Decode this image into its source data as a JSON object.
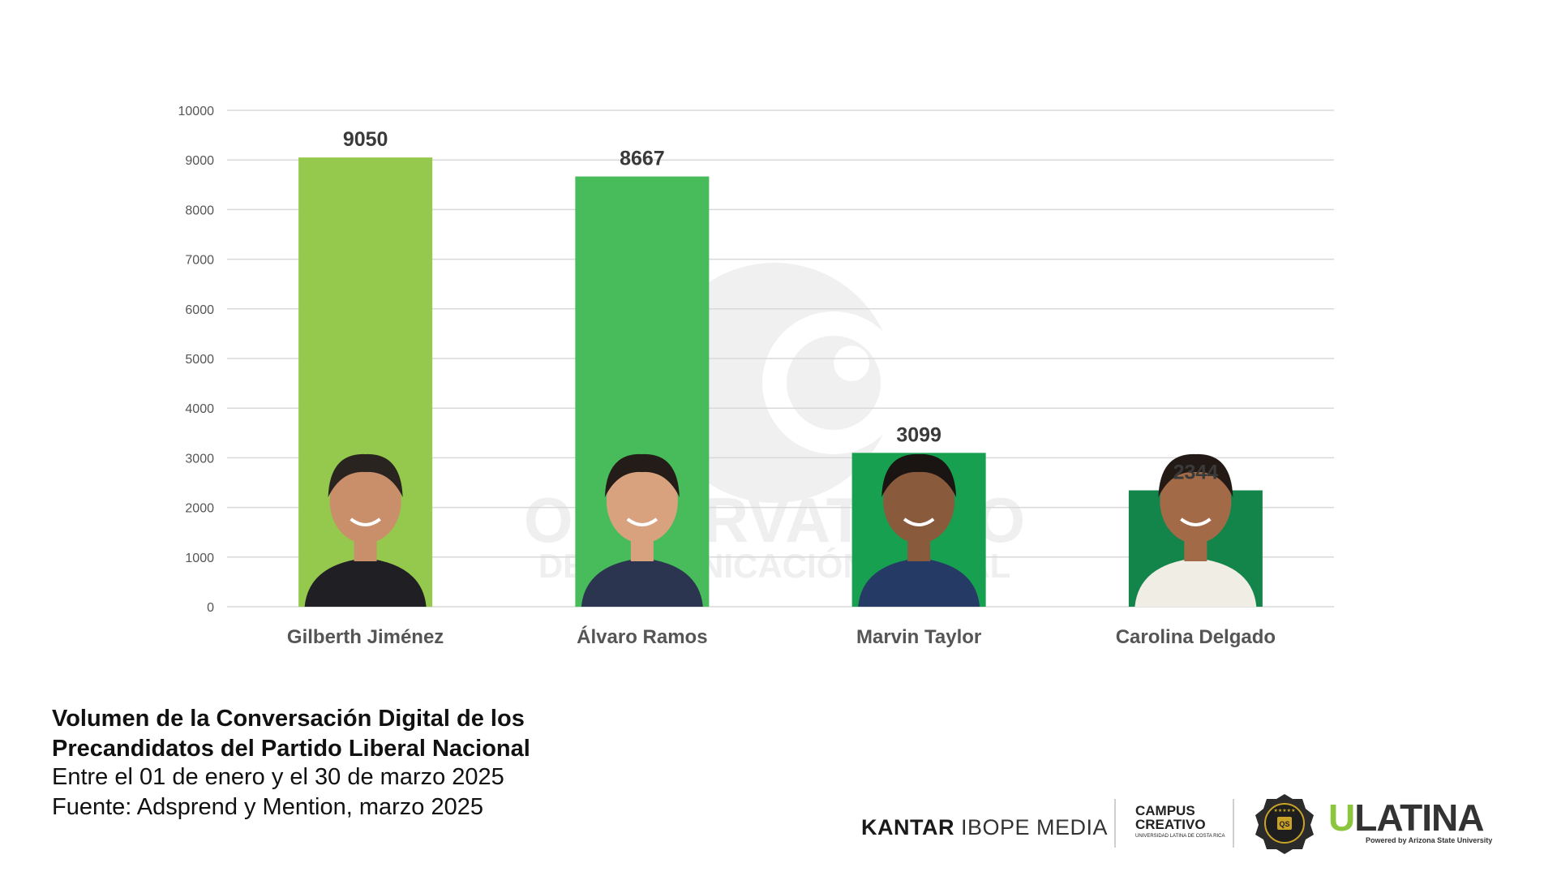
{
  "chart_data": {
    "type": "bar",
    "categories": [
      "Gilberth Jiménez",
      "Álvaro Ramos",
      "Marvin Taylor",
      "Carolina Delgado"
    ],
    "values": [
      9050,
      8667,
      3099,
      2344
    ],
    "ylim": [
      0,
      10000
    ],
    "yticks": [
      0,
      1000,
      2000,
      3000,
      4000,
      5000,
      6000,
      7000,
      8000,
      9000,
      10000
    ],
    "bar_colors": [
      "#95c94e",
      "#48bb5b",
      "#17a050",
      "#13844a"
    ],
    "grid": true,
    "watermark": [
      "OBSERVATORIO",
      "DE COMUNICACIÓN DIGITAL"
    ]
  },
  "footer": {
    "title_line1": "Volumen de la Conversación Digital de los",
    "title_line2": "Precandidatos del Partido Liberal Nacional",
    "subtitle_line1": "Entre el 01 de enero y el 30 de marzo 2025",
    "subtitle_line2": "Fuente: Adsprend y Mention, marzo 2025"
  },
  "logos": {
    "kantar_bold": "KANTAR",
    "kantar_rest": "IBOPE MEDIA",
    "campus_line1": "CAMPUS",
    "campus_line2": "CREATIVO",
    "campus_small": "UNIVERSIDAD LATINA DE COSTA RICA",
    "badge_text": "QS",
    "ulatina_u": "U",
    "ulatina_rest": "LATINA",
    "ulatina_powered": "Powered by Arizona State University"
  }
}
